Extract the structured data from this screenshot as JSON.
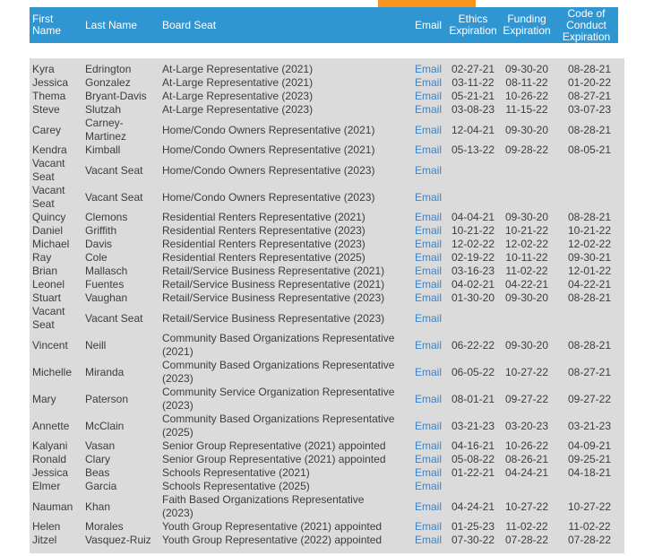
{
  "theme": {
    "header_bg": "#3096d2",
    "header_text": "#ffffff",
    "body_bg": "#dbdbdb",
    "body_text": "#3c3c3c",
    "link_color": "#3d82c4",
    "accent_orange": "#f7941e"
  },
  "table": {
    "columns": [
      {
        "key": "first",
        "label": "First Name"
      },
      {
        "key": "last",
        "label": "Last Name"
      },
      {
        "key": "seat",
        "label": "Board Seat"
      },
      {
        "key": "email",
        "label": "Email"
      },
      {
        "key": "ethics",
        "label": "Ethics Expiration"
      },
      {
        "key": "funding",
        "label": "Funding Expiration"
      },
      {
        "key": "conduct",
        "label": "Code of Conduct Expiration"
      }
    ],
    "email_link_label": "Email",
    "rows": [
      {
        "first": "Kyra",
        "last": "Edrington",
        "seat": "At-Large Representative (2021)",
        "ethics": "02-27-21",
        "funding": "09-30-20",
        "conduct": "08-28-21"
      },
      {
        "first": "Jessica",
        "last": "Gonzalez",
        "seat": "At-Large Representative (2021)",
        "ethics": "03-11-22",
        "funding": "08-11-22",
        "conduct": "01-20-22"
      },
      {
        "first": "Thema",
        "last": "Bryant-Davis",
        "seat": "At-Large Representative (2023)",
        "ethics": "05-21-21",
        "funding": "10-26-22",
        "conduct": "08-27-21"
      },
      {
        "first": "Steve",
        "last": "Slutzah",
        "seat": "At-Large Representative (2023)",
        "ethics": "03-08-23",
        "funding": "11-15-22",
        "conduct": "03-07-23"
      },
      {
        "first": "Carey",
        "last": "Carney-Martinez",
        "seat": "Home/Condo Owners Representative (2021)",
        "ethics": "12-04-21",
        "funding": "09-30-20",
        "conduct": "08-28-21"
      },
      {
        "first": "Kendra",
        "last": "Kimball",
        "seat": "Home/Condo Owners Representative (2021)",
        "ethics": "05-13-22",
        "funding": "09-28-22",
        "conduct": "08-05-21"
      },
      {
        "first": "Vacant Seat",
        "last": "Vacant Seat",
        "seat": "Home/Condo Owners Representative (2023)",
        "ethics": "",
        "funding": "",
        "conduct": ""
      },
      {
        "first": "Vacant Seat",
        "last": "Vacant Seat",
        "seat": "Home/Condo Owners Representative (2023)",
        "ethics": "",
        "funding": "",
        "conduct": ""
      },
      {
        "first": "Quincy",
        "last": "Clemons",
        "seat": "Residential Renters Representative (2021)",
        "ethics": "04-04-21",
        "funding": "09-30-20",
        "conduct": "08-28-21"
      },
      {
        "first": "Daniel",
        "last": "Griffith",
        "seat": "Residential Renters Representative (2023)",
        "ethics": "10-21-22",
        "funding": "10-21-22",
        "conduct": "10-21-22"
      },
      {
        "first": "Michael",
        "last": "Davis",
        "seat": "Residential Renters Representative (2023)",
        "ethics": "12-02-22",
        "funding": "12-02-22",
        "conduct": "12-02-22"
      },
      {
        "first": "Ray",
        "last": "Cole",
        "seat": "Residential Renters Representative (2025)",
        "ethics": "02-19-22",
        "funding": "10-11-22",
        "conduct": "09-30-21"
      },
      {
        "first": "Brian",
        "last": "Mallasch",
        "seat": "Retail/Service Business Representative (2021)",
        "ethics": "03-16-23",
        "funding": "11-02-22",
        "conduct": "12-01-22"
      },
      {
        "first": "Leonel",
        "last": "Fuentes",
        "seat": "Retail/Service Business Representative (2021)",
        "ethics": "04-02-21",
        "funding": "04-22-21",
        "conduct": "04-22-21"
      },
      {
        "first": "Stuart",
        "last": "Vaughan",
        "seat": "Retail/Service Business Representative (2023)",
        "ethics": "01-30-20",
        "funding": "09-30-20",
        "conduct": "08-28-21"
      },
      {
        "first": "Vacant Seat",
        "last": "Vacant Seat",
        "seat": "Retail/Service Business Representative (2023)",
        "ethics": "",
        "funding": "",
        "conduct": ""
      },
      {
        "first": "Vincent",
        "last": "Neill",
        "seat": "Community Based Organizations Representative (2021)",
        "ethics": "06-22-22",
        "funding": "09-30-20",
        "conduct": "08-28-21"
      },
      {
        "first": "Michelle",
        "last": "Miranda",
        "seat": "Community Based Organizations Representative (2023)",
        "ethics": "06-05-22",
        "funding": "10-27-22",
        "conduct": "08-27-21"
      },
      {
        "first": "Mary",
        "last": "Paterson",
        "seat": "Community Service Organization Representative (2023)",
        "ethics": "08-01-21",
        "funding": "09-27-22",
        "conduct": "09-27-22"
      },
      {
        "first": "Annette",
        "last": "McClain",
        "seat": "Community Based Organizations Representative (2025)",
        "ethics": "03-21-23",
        "funding": "03-20-23",
        "conduct": "03-21-23"
      },
      {
        "first": "Kalyani",
        "last": "Vasan",
        "seat": "Senior Group Representative (2021) appointed",
        "ethics": "04-16-21",
        "funding": "10-26-22",
        "conduct": "04-09-21"
      },
      {
        "first": "Ronald",
        "last": "Clary",
        "seat": "Senior Group Representative (2021) appointed",
        "ethics": "05-08-22",
        "funding": "08-26-21",
        "conduct": "09-25-21"
      },
      {
        "first": "Jessica",
        "last": "Beas",
        "seat": "Schools Representative (2021)",
        "ethics": "01-22-21",
        "funding": "04-24-21",
        "conduct": "04-18-21"
      },
      {
        "first": "Elmer",
        "last": "Garcia",
        "seat": "Schools Representative (2025)",
        "ethics": "",
        "funding": "",
        "conduct": ""
      },
      {
        "first": "Nauman",
        "last": "Khan",
        "seat": "Faith Based Organizations Representative (2023)",
        "ethics": "04-24-21",
        "funding": "10-27-22",
        "conduct": "10-27-22"
      },
      {
        "first": "Helen",
        "last": "Morales",
        "seat": "Youth Group Representative (2021) appointed",
        "ethics": "01-25-23",
        "funding": "11-02-22",
        "conduct": "11-02-22"
      },
      {
        "first": "Jitzel",
        "last": "Vasquez-Ruiz",
        "seat": "Youth Group Representative (2022) appointed",
        "ethics": "07-30-22",
        "funding": "07-28-22",
        "conduct": "07-28-22"
      }
    ]
  }
}
